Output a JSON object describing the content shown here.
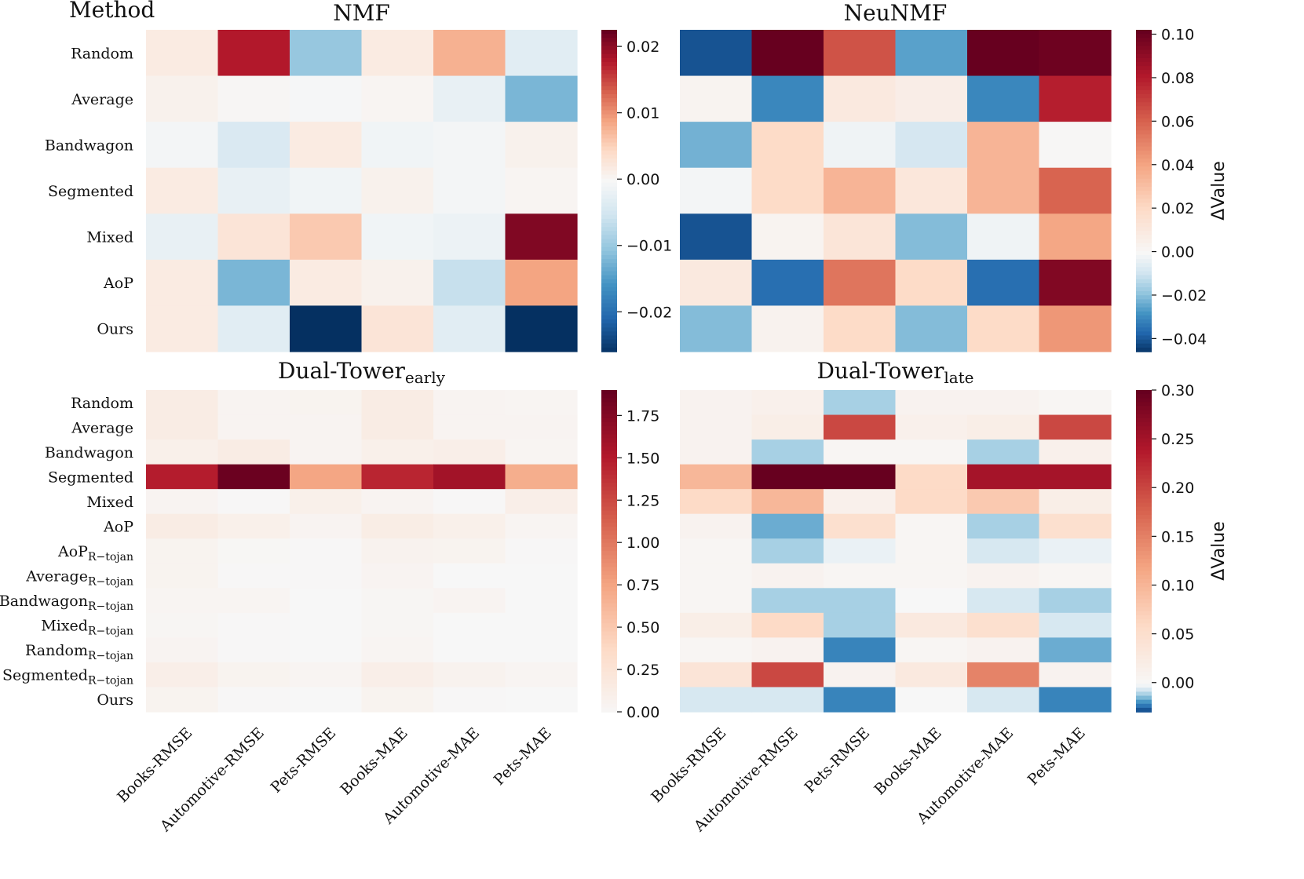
{
  "header": {
    "row_header": "Method"
  },
  "colormap": {
    "stops": [
      [
        0.0,
        "#053061"
      ],
      [
        0.1,
        "#2166ac"
      ],
      [
        0.2,
        "#4393c3"
      ],
      [
        0.3,
        "#92c5de"
      ],
      [
        0.4,
        "#d1e5f0"
      ],
      [
        0.5,
        "#f7f7f7"
      ],
      [
        0.6,
        "#fddbc7"
      ],
      [
        0.7,
        "#f4a582"
      ],
      [
        0.8,
        "#d6604d"
      ],
      [
        0.9,
        "#b2182b"
      ],
      [
        1.0,
        "#67001f"
      ]
    ]
  },
  "colorbar_label": "ΔValue",
  "chart_data": [
    {
      "type": "heatmap",
      "id": "nmf",
      "title": "NMF",
      "title_sub": "",
      "rows": [
        "Random",
        "Average",
        "Bandwagon",
        "Segmented",
        "Mixed",
        "AoP",
        "Ours"
      ],
      "columns": [
        "Books-RMSE",
        "Automotive-RMSE",
        "Pets-RMSE",
        "Books-MAE",
        "Automotive-MAE",
        "Pets-MAE"
      ],
      "values": [
        [
          0.002,
          0.018,
          -0.01,
          0.002,
          0.008,
          -0.003
        ],
        [
          0.001,
          0.0003,
          -0.0003,
          0.0005,
          -0.002,
          -0.012
        ],
        [
          -0.0005,
          -0.004,
          0.002,
          -0.001,
          -0.0005,
          0.001
        ],
        [
          0.002,
          -0.002,
          -0.001,
          0.001,
          -0.0005,
          0.0005
        ],
        [
          -0.002,
          0.003,
          0.006,
          -0.001,
          -0.0015,
          0.021
        ],
        [
          0.002,
          -0.012,
          0.002,
          0.001,
          -0.006,
          0.009
        ],
        [
          0.002,
          -0.003,
          -0.03,
          0.003,
          -0.003,
          -0.03
        ]
      ],
      "vmin": -0.026,
      "vmax": 0.0225,
      "colorbar_ticks": [
        "0.02",
        "0.01",
        "0.00",
        "−0.01",
        "−0.02"
      ],
      "colorbar_tick_values": [
        0.02,
        0.01,
        0.0,
        -0.01,
        -0.02
      ],
      "colorbar_label": ""
    },
    {
      "type": "heatmap",
      "id": "neunmf",
      "title": "NeuNMF",
      "title_sub": "",
      "rows": [
        "Random",
        "Average",
        "Bandwagon",
        "Segmented",
        "Mixed",
        "AoP",
        "Ours"
      ],
      "columns": [
        "Books-RMSE",
        "Automotive-RMSE",
        "Pets-RMSE",
        "Books-MAE",
        "Automotive-MAE",
        "Pets-MAE"
      ],
      "values": [
        [
          -0.04,
          0.105,
          0.065,
          -0.025,
          0.105,
          0.1
        ],
        [
          0.003,
          -0.03,
          0.01,
          0.007,
          -0.03,
          0.08
        ],
        [
          -0.022,
          0.02,
          -0.002,
          -0.008,
          0.035,
          0.001
        ],
        [
          -0.001,
          0.02,
          0.035,
          0.012,
          0.035,
          0.06
        ],
        [
          -0.04,
          0.003,
          0.013,
          -0.02,
          -0.002,
          0.04
        ],
        [
          0.01,
          -0.035,
          0.055,
          0.02,
          -0.035,
          0.095
        ],
        [
          -0.02,
          0.004,
          0.02,
          -0.02,
          0.02,
          0.045
        ]
      ],
      "vmin": -0.046,
      "vmax": 0.102,
      "colorbar_ticks": [
        "0.10",
        "0.08",
        "0.06",
        "0.04",
        "0.02",
        "0.00",
        "−0.02",
        "−0.04"
      ],
      "colorbar_tick_values": [
        0.1,
        0.08,
        0.06,
        0.04,
        0.02,
        0.0,
        -0.02,
        -0.04
      ],
      "colorbar_label": "ΔValue"
    },
    {
      "type": "heatmap",
      "id": "dual-early",
      "title": "Dual-Tower",
      "title_sub": "early",
      "rows": [
        "Random",
        "Average",
        "Bandwagon",
        "Segmented",
        "Mixed",
        "AoP",
        "AoP|R−tojan",
        "Average|R−tojan",
        "Bandwagon|R−tojan",
        "Mixed|R−tojan",
        "Random|R−tojan",
        "Segmented|R−tojan",
        "Ours"
      ],
      "columns": [
        "Books-RMSE",
        "Automotive-RMSE",
        "Pets-RMSE",
        "Books-MAE",
        "Automotive-MAE",
        "Pets-MAE"
      ],
      "values": [
        [
          0.15,
          0.05,
          0.06,
          0.15,
          0.05,
          0.04
        ],
        [
          0.15,
          0.05,
          0.05,
          0.15,
          0.05,
          0.05
        ],
        [
          0.1,
          0.15,
          0.05,
          0.1,
          0.12,
          0.04
        ],
        [
          1.5,
          1.88,
          0.75,
          1.45,
          1.6,
          0.7
        ],
        [
          0.05,
          0.01,
          0.1,
          0.05,
          0.01,
          0.12
        ],
        [
          0.15,
          0.1,
          0.05,
          0.14,
          0.1,
          0.04
        ],
        [
          0.06,
          0.02,
          0.01,
          0.07,
          0.06,
          0.01
        ],
        [
          0.06,
          0.01,
          0.01,
          0.05,
          0.0,
          0.0
        ],
        [
          0.04,
          0.04,
          0.0,
          0.03,
          0.05,
          0.0
        ],
        [
          0.03,
          0.01,
          0.0,
          0.03,
          0.0,
          0.0
        ],
        [
          0.05,
          0.01,
          0.0,
          0.04,
          0.0,
          0.0
        ],
        [
          0.12,
          0.06,
          0.04,
          0.12,
          0.07,
          0.04
        ],
        [
          0.06,
          0.01,
          0.0,
          0.06,
          0.01,
          0.0
        ]
      ],
      "vmin": 0.0,
      "vmax": 1.9,
      "center_white": true,
      "colorbar_ticks": [
        "1.75",
        "1.50",
        "1.25",
        "1.00",
        "0.75",
        "0.50",
        "0.25",
        "0.00"
      ],
      "colorbar_tick_values": [
        1.75,
        1.5,
        1.25,
        1.0,
        0.75,
        0.5,
        0.25,
        0.0
      ],
      "colorbar_label": ""
    },
    {
      "type": "heatmap",
      "id": "dual-late",
      "title": "Dual-Tower",
      "title_sub": "late",
      "rows": [
        "Random",
        "Average",
        "Bandwagon",
        "Segmented",
        "Mixed",
        "AoP",
        "AoP|R−tojan",
        "Average|R−tojan",
        "Bandwagon|R−tojan",
        "Mixed|R−tojan",
        "Random|R−tojan",
        "Segmented|R−tojan",
        "Ours"
      ],
      "columns": [
        "Books-RMSE",
        "Automotive-RMSE",
        "Pets-RMSE",
        "Books-MAE",
        "Automotive-MAE",
        "Pets-MAE"
      ],
      "values": [
        [
          0.01,
          0.015,
          -0.01,
          0.01,
          0.01,
          0.005
        ],
        [
          0.01,
          0.02,
          0.2,
          0.015,
          0.02,
          0.2
        ],
        [
          0.01,
          -0.01,
          0.005,
          0.005,
          -0.01,
          0.015
        ],
        [
          0.1,
          0.3,
          0.3,
          0.06,
          0.25,
          0.25
        ],
        [
          0.06,
          0.1,
          0.015,
          0.06,
          0.08,
          0.02
        ],
        [
          0.01,
          -0.015,
          0.05,
          0.005,
          -0.01,
          0.05
        ],
        [
          0.005,
          -0.01,
          -0.002,
          0.005,
          -0.005,
          -0.002
        ],
        [
          0.005,
          0.01,
          0.005,
          0.005,
          0.01,
          0.005
        ],
        [
          0.005,
          -0.01,
          -0.01,
          0.0,
          -0.005,
          -0.01
        ],
        [
          0.02,
          0.06,
          -0.01,
          0.03,
          0.05,
          -0.005
        ],
        [
          0.005,
          0.01,
          -0.02,
          0.005,
          0.01,
          -0.015
        ],
        [
          0.04,
          0.2,
          0.01,
          0.03,
          0.15,
          0.01
        ],
        [
          -0.005,
          -0.005,
          -0.02,
          0.0,
          -0.005,
          -0.02
        ]
      ],
      "vmin": -0.03,
      "vmax": 0.3,
      "colorbar_ticks": [
        "0.30",
        "0.25",
        "0.20",
        "0.15",
        "0.10",
        "0.05",
        "0.00"
      ],
      "colorbar_tick_values": [
        0.3,
        0.25,
        0.2,
        0.15,
        0.1,
        0.05,
        0.0
      ],
      "colorbar_label": "ΔValue"
    }
  ]
}
